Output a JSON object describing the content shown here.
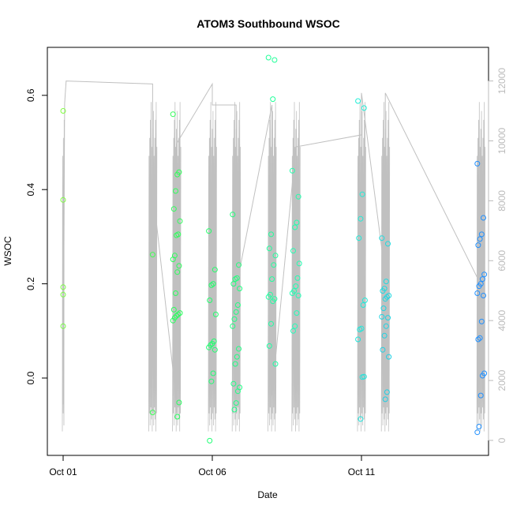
{
  "chart_data": {
    "type": "scatter",
    "title": "ATOM3 Southbound WSOC",
    "xlabel": "Date",
    "ylabel": "WSOC",
    "x_range": [
      "2017-10-01T00:00",
      "2017-10-15T12:00"
    ],
    "ylim": [
      -0.15,
      0.72
    ],
    "y2lim": [
      -50,
      12400
    ],
    "x_ticks": [
      {
        "label": "Oct 01",
        "day": 0
      },
      {
        "label": "Oct 06",
        "day": 5
      },
      {
        "label": "Oct 11",
        "day": 10
      }
    ],
    "y_ticks": [
      {
        "label": "0.0",
        "value": 0.0
      },
      {
        "label": "0.2",
        "value": 0.2
      },
      {
        "label": "0.4",
        "value": 0.4
      },
      {
        "label": "0.6",
        "value": 0.6
      }
    ],
    "y2_ticks": [
      {
        "label": "0",
        "value": 0
      },
      {
        "label": "2000",
        "value": 2000
      },
      {
        "label": "4000",
        "value": 4000
      },
      {
        "label": "6000",
        "value": 6000
      },
      {
        "label": "8000",
        "value": 8000
      },
      {
        "label": "10000",
        "value": 10000
      },
      {
        "label": "12000",
        "value": 12000
      }
    ],
    "grid": false,
    "point_color_gradient": [
      "#80ff40",
      "#20ff60",
      "#20ffd0",
      "#2090ff"
    ],
    "altitude_line_color": "#c0c0c0",
    "series": [
      {
        "day": 0.0,
        "points": [
          0.567,
          0.378,
          0.193,
          0.177,
          0.11
        ]
      },
      {
        "day": 3.0,
        "points": [
          0.262,
          -0.073
        ]
      },
      {
        "day": 3.8,
        "points": [
          0.56,
          0.437,
          0.432,
          0.397,
          0.359,
          0.333,
          0.305,
          0.303,
          0.26,
          0.252,
          0.238,
          0.225,
          0.18,
          0.145,
          0.138,
          0.135,
          0.132,
          0.128,
          0.122,
          -0.052,
          -0.082
        ]
      },
      {
        "day": 5.0,
        "points": [
          0.312,
          0.23,
          0.2,
          0.197,
          0.165,
          0.135,
          0.078,
          0.073,
          0.07,
          0.065,
          0.06,
          0.01,
          -0.007,
          -0.133
        ]
      },
      {
        "day": 5.8,
        "points": [
          0.347,
          0.24,
          0.212,
          0.21,
          0.2,
          0.19,
          0.155,
          0.14,
          0.125,
          0.11,
          0.062,
          0.045,
          0.03,
          -0.012,
          -0.02,
          -0.028,
          -0.053,
          -0.067
        ]
      },
      {
        "day": 7.0,
        "points": [
          0.68,
          0.675,
          0.592,
          0.305,
          0.275,
          0.26,
          0.24,
          0.21,
          0.177,
          0.172,
          0.168,
          0.163,
          0.115,
          0.068,
          0.03
        ]
      },
      {
        "day": 7.8,
        "points": [
          0.44,
          0.385,
          0.33,
          0.32,
          0.27,
          0.243,
          0.212,
          0.195,
          0.185,
          0.18,
          0.175,
          0.138,
          0.11,
          0.1
        ]
      },
      {
        "day": 10.0,
        "points": [
          0.588,
          0.573,
          0.39,
          0.338,
          0.297,
          0.165,
          0.155,
          0.105,
          0.103,
          0.082,
          0.003,
          0.002,
          -0.087
        ]
      },
      {
        "day": 10.8,
        "points": [
          0.297,
          0.285,
          0.205,
          0.19,
          0.185,
          0.175,
          0.172,
          0.168,
          0.148,
          0.13,
          0.128,
          0.11,
          0.09,
          0.06,
          0.045,
          -0.03,
          -0.045
        ]
      },
      {
        "day": 14.0,
        "points": [
          0.455,
          0.34,
          0.305,
          0.295,
          0.282,
          0.22,
          0.21,
          0.2,
          0.195,
          0.18,
          0.175,
          0.12,
          0.085,
          0.082,
          0.01,
          0.005,
          -0.037,
          -0.103,
          -0.115
        ]
      }
    ],
    "altitude_zigzag": [
      [
        0.0,
        1200
      ],
      [
        0.05,
        11250
      ],
      [
        0.1,
        12000
      ],
      [
        3.0,
        11900
      ],
      [
        3.0,
        8400
      ],
      [
        3.8,
        1300
      ],
      [
        3.8,
        9900
      ],
      [
        5.0,
        11900
      ],
      [
        5.0,
        11200
      ],
      [
        5.8,
        11200
      ],
      [
        5.8,
        5100
      ],
      [
        7.0,
        11200
      ],
      [
        7.0,
        1500
      ],
      [
        7.8,
        9800
      ],
      [
        10.0,
        10200
      ],
      [
        10.0,
        11600
      ],
      [
        10.8,
        5500
      ],
      [
        10.8,
        11600
      ],
      [
        14.0,
        5200
      ]
    ]
  }
}
